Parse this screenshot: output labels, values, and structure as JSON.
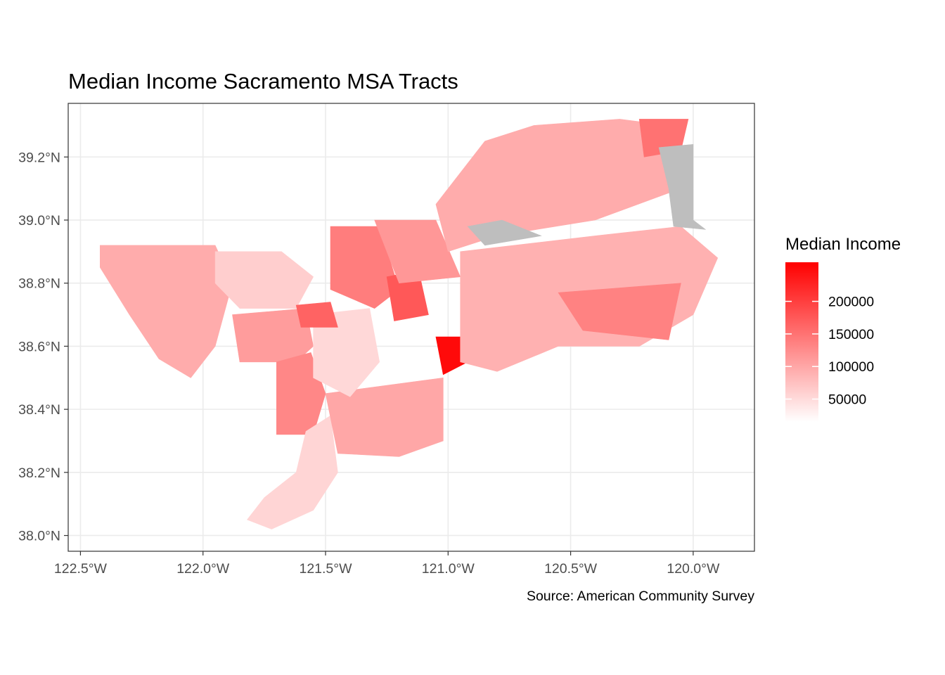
{
  "chart_data": {
    "type": "choropleth",
    "title": "Median Income Sacramento MSA Tracts",
    "caption": "Source: American Community Survey",
    "xlim": [
      -122.55,
      -119.75
    ],
    "ylim": [
      37.95,
      39.37
    ],
    "x_ticks": [
      {
        "value": -122.5,
        "label": "122.5°W"
      },
      {
        "value": -122.0,
        "label": "122.0°W"
      },
      {
        "value": -121.5,
        "label": "121.5°W"
      },
      {
        "value": -121.0,
        "label": "121.0°W"
      },
      {
        "value": -120.5,
        "label": "120.5°W"
      },
      {
        "value": -120.0,
        "label": "120.0°W"
      }
    ],
    "y_ticks": [
      {
        "value": 38.0,
        "label": "38.0°N"
      },
      {
        "value": 38.2,
        "label": "38.2°N"
      },
      {
        "value": 38.4,
        "label": "38.4°N"
      },
      {
        "value": 38.6,
        "label": "38.6°N"
      },
      {
        "value": 38.8,
        "label": "38.8°N"
      },
      {
        "value": 39.0,
        "label": "39.0°N"
      },
      {
        "value": 39.2,
        "label": "39.2°N"
      }
    ],
    "grid": true,
    "legend": {
      "title": "Median Income",
      "position": "right",
      "low_color": "#ffffff",
      "high_color": "#ff0000",
      "na_color": "#bebebe",
      "range": [
        15000,
        260000
      ],
      "breaks": [
        {
          "value": 50000,
          "label": "50000"
        },
        {
          "value": 100000,
          "label": "100000"
        },
        {
          "value": 150000,
          "label": "150000"
        },
        {
          "value": 200000,
          "label": "200000"
        }
      ]
    },
    "regions": [
      {
        "id": "yolo-west",
        "value": 95000,
        "boundary": [
          [
            -122.42,
            38.92
          ],
          [
            -121.95,
            38.92
          ],
          [
            -121.88,
            38.8
          ],
          [
            -121.95,
            38.6
          ],
          [
            -122.05,
            38.5
          ],
          [
            -122.18,
            38.56
          ],
          [
            -122.3,
            38.7
          ],
          [
            -122.42,
            38.85
          ]
        ]
      },
      {
        "id": "yolo-north",
        "value": 62000,
        "boundary": [
          [
            -121.95,
            38.9
          ],
          [
            -121.68,
            38.9
          ],
          [
            -121.55,
            38.82
          ],
          [
            -121.62,
            38.72
          ],
          [
            -121.85,
            38.72
          ],
          [
            -121.95,
            38.8
          ]
        ]
      },
      {
        "id": "yolo-south",
        "value": 110000,
        "boundary": [
          [
            -121.88,
            38.7
          ],
          [
            -121.58,
            38.72
          ],
          [
            -121.55,
            38.6
          ],
          [
            -121.62,
            38.55
          ],
          [
            -121.85,
            38.55
          ]
        ]
      },
      {
        "id": "yolo-delta",
        "value": 130000,
        "boundary": [
          [
            -121.7,
            38.55
          ],
          [
            -121.56,
            38.58
          ],
          [
            -121.5,
            38.45
          ],
          [
            -121.55,
            38.32
          ],
          [
            -121.7,
            38.32
          ]
        ]
      },
      {
        "id": "sac-delta",
        "value": 55000,
        "boundary": [
          [
            -121.58,
            38.33
          ],
          [
            -121.48,
            38.38
          ],
          [
            -121.45,
            38.2
          ],
          [
            -121.55,
            38.08
          ],
          [
            -121.72,
            38.02
          ],
          [
            -121.82,
            38.05
          ],
          [
            -121.75,
            38.12
          ],
          [
            -121.62,
            38.2
          ]
        ]
      },
      {
        "id": "sac-south",
        "value": 100000,
        "boundary": [
          [
            -121.5,
            38.45
          ],
          [
            -121.02,
            38.5
          ],
          [
            -121.02,
            38.3
          ],
          [
            -121.2,
            38.25
          ],
          [
            -121.45,
            38.26
          ]
        ]
      },
      {
        "id": "sac-city",
        "value": 52000,
        "boundary": [
          [
            -121.55,
            38.7
          ],
          [
            -121.32,
            38.72
          ],
          [
            -121.28,
            38.55
          ],
          [
            -121.4,
            38.44
          ],
          [
            -121.55,
            38.5
          ]
        ]
      },
      {
        "id": "sac-suburbs-n",
        "value": 140000,
        "boundary": [
          [
            -121.48,
            38.98
          ],
          [
            -121.28,
            38.98
          ],
          [
            -121.2,
            38.78
          ],
          [
            -121.3,
            38.72
          ],
          [
            -121.48,
            38.78
          ]
        ]
      },
      {
        "id": "north-highlands",
        "value": 165000,
        "boundary": [
          [
            -121.62,
            38.73
          ],
          [
            -121.48,
            38.74
          ],
          [
            -121.45,
            38.66
          ],
          [
            -121.6,
            38.66
          ]
        ]
      },
      {
        "id": "folsom",
        "value": 175000,
        "boundary": [
          [
            -121.25,
            38.82
          ],
          [
            -121.12,
            38.84
          ],
          [
            -121.08,
            38.7
          ],
          [
            -121.22,
            38.68
          ]
        ]
      },
      {
        "id": "el-dorado-hills",
        "value": 250000,
        "boundary": [
          [
            -121.05,
            38.63
          ],
          [
            -120.95,
            38.63
          ],
          [
            -120.92,
            38.55
          ],
          [
            -121.02,
            38.51
          ]
        ]
      },
      {
        "id": "placer-west",
        "value": 115000,
        "boundary": [
          [
            -121.3,
            39.0
          ],
          [
            -121.05,
            39.0
          ],
          [
            -120.95,
            38.82
          ],
          [
            -121.2,
            38.8
          ]
        ]
      },
      {
        "id": "placer-foothills",
        "value": 95000,
        "boundary": [
          [
            -121.05,
            39.05
          ],
          [
            -120.85,
            39.25
          ],
          [
            -120.65,
            39.3
          ],
          [
            -120.3,
            39.32
          ],
          [
            -120.1,
            39.3
          ],
          [
            -120.05,
            39.1
          ],
          [
            -120.4,
            39.0
          ],
          [
            -120.8,
            38.95
          ],
          [
            -121.0,
            38.9
          ]
        ]
      },
      {
        "id": "el-dorado-county",
        "value": 90000,
        "boundary": [
          [
            -120.95,
            38.9
          ],
          [
            -120.4,
            38.95
          ],
          [
            -120.05,
            38.98
          ],
          [
            -119.9,
            38.88
          ],
          [
            -120.0,
            38.7
          ],
          [
            -120.22,
            38.6
          ],
          [
            -120.55,
            38.6
          ],
          [
            -120.8,
            38.52
          ],
          [
            -120.95,
            38.55
          ]
        ]
      },
      {
        "id": "pollock-pines",
        "value": 135000,
        "boundary": [
          [
            -120.55,
            38.77
          ],
          [
            -120.05,
            38.8
          ],
          [
            -120.1,
            38.62
          ],
          [
            -120.45,
            38.65
          ]
        ]
      },
      {
        "id": "tahoe-area",
        "value": 150000,
        "boundary": [
          [
            -120.22,
            39.32
          ],
          [
            -120.02,
            39.32
          ],
          [
            -120.05,
            39.22
          ],
          [
            -120.2,
            39.2
          ]
        ]
      },
      {
        "id": "lake-tahoe",
        "value": null,
        "boundary": [
          [
            -120.14,
            39.23
          ],
          [
            -120.0,
            39.24
          ],
          [
            -120.0,
            39.0
          ],
          [
            -119.95,
            38.97
          ],
          [
            -120.08,
            38.98
          ],
          [
            -120.1,
            39.1
          ]
        ]
      },
      {
        "id": "folsom-lake",
        "value": null,
        "boundary": [
          [
            -120.92,
            38.98
          ],
          [
            -120.78,
            39.0
          ],
          [
            -120.62,
            38.95
          ],
          [
            -120.85,
            38.92
          ]
        ]
      }
    ]
  }
}
